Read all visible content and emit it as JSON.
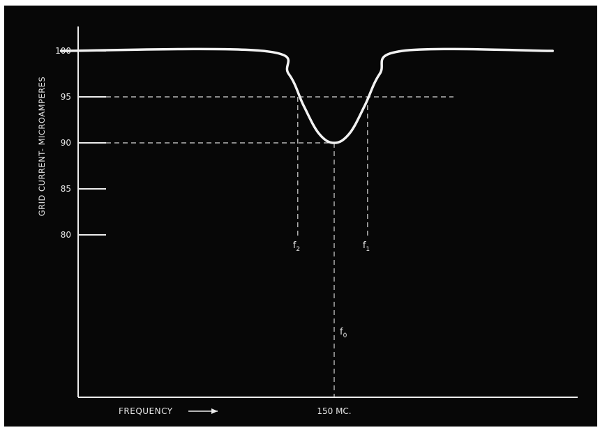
{
  "chart_data": {
    "type": "line",
    "ylabel": "GRID CURRENT - MICROAMPERES",
    "xlabel": "FREQUENCY",
    "yticks": [
      100,
      95,
      90,
      85,
      80
    ],
    "ylim": [
      62,
      103
    ],
    "xlim": [
      -9,
      9
    ],
    "xtick_label": "150 MC.",
    "grid": false,
    "series": [
      {
        "x": [
          -9,
          -2.35,
          -1.5,
          -1.0,
          -0.5,
          0,
          0.5,
          1.0,
          1.5,
          2.25,
          7.2
        ],
        "y": [
          100,
          100,
          97.5,
          94,
          91,
          90,
          91,
          94,
          97.5,
          100,
          100
        ]
      }
    ],
    "reference_lines": [
      {
        "y": 95,
        "label": "f2",
        "x": -1.2
      },
      {
        "y": 95,
        "label": "f1",
        "x": 1.1
      },
      {
        "y": 90,
        "label": "f0",
        "x": 0
      }
    ],
    "colors": {
      "background": "#070707",
      "curve": "#f2f2f2",
      "axis": "#ededed",
      "dashed": "#d8d8d8"
    }
  }
}
